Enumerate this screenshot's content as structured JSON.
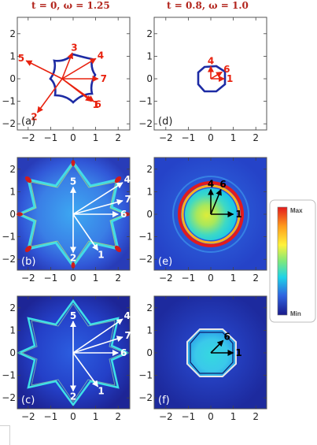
{
  "titles": {
    "left": "t = 0, ω = 1.25",
    "right": "t = 0.8, ω = 1.0"
  },
  "colorbar": {
    "max_label": "Max",
    "min_label": "Min",
    "stops": [
      "#e31a1c",
      "#ff9e1c",
      "#fff23a",
      "#7fe87a",
      "#1dd3e8",
      "#2f63e0",
      "#1a1a8a"
    ]
  },
  "axes": {
    "x_ticks": [
      "−2",
      "−1",
      "0",
      "1",
      "2"
    ],
    "y_ticks": [
      "2",
      "1",
      "0",
      "−1",
      "−2"
    ]
  },
  "chart_data": [
    {
      "panel": "(a)",
      "type": "diagram",
      "xlim": [
        -2.5,
        2.5
      ],
      "ylim": [
        -2.5,
        2.5
      ],
      "vectors": [
        {
          "label": "1",
          "x": 1.3,
          "y": -1.0
        },
        {
          "label": "2",
          "x": -1.1,
          "y": -1.5
        },
        {
          "label": "3",
          "x": 0.45,
          "y": 1.15
        },
        {
          "label": "4",
          "x": 1.5,
          "y": 0.9
        },
        {
          "label": "5",
          "x": -1.6,
          "y": 0.8
        },
        {
          "label": "6",
          "x": 1.4,
          "y": -1.0
        },
        {
          "label": "7",
          "x": 1.6,
          "y": 0.0
        }
      ]
    },
    {
      "panel": "(d)",
      "type": "diagram",
      "xlim": [
        -2.5,
        2.5
      ],
      "ylim": [
        -2.5,
        2.5
      ],
      "vectors": [
        {
          "label": "1",
          "x": 0.6,
          "y": 0.0
        },
        {
          "label": "4",
          "x": 0.0,
          "y": 0.55
        },
        {
          "label": "6",
          "x": 0.5,
          "y": 0.3
        }
      ]
    },
    {
      "panel": "(b)",
      "type": "heatmap",
      "xlim": [
        -2.5,
        2.5
      ],
      "ylim": [
        -2.5,
        2.5
      ],
      "vectors": [
        {
          "label": "1",
          "x": 1.1,
          "y": -1.6
        },
        {
          "label": "2",
          "x": 0.0,
          "y": -1.7
        },
        {
          "label": "4",
          "x": 2.2,
          "y": 1.4
        },
        {
          "label": "5",
          "x": 0.0,
          "y": 1.2
        },
        {
          "label": "6",
          "x": 2.0,
          "y": 0.0
        },
        {
          "label": "7",
          "x": 2.2,
          "y": 0.6
        }
      ]
    },
    {
      "panel": "(e)",
      "type": "heatmap",
      "xlim": [
        -2.5,
        2.5
      ],
      "ylim": [
        -2.5,
        2.5
      ],
      "vectors": [
        {
          "label": "1",
          "x": 1.0,
          "y": 0.0
        },
        {
          "label": "4",
          "x": 0.0,
          "y": 1.1
        },
        {
          "label": "6",
          "x": 0.45,
          "y": 1.1
        }
      ]
    },
    {
      "panel": "(c)",
      "type": "heatmap",
      "xlim": [
        -2.5,
        2.5
      ],
      "ylim": [
        -2.5,
        2.5
      ],
      "vectors": [
        {
          "label": "1",
          "x": 1.1,
          "y": -1.5
        },
        {
          "label": "2",
          "x": 0.0,
          "y": -1.7
        },
        {
          "label": "4",
          "x": 2.2,
          "y": 1.5
        },
        {
          "label": "5",
          "x": 0.0,
          "y": 1.4
        },
        {
          "label": "6",
          "x": 2.0,
          "y": 0.0
        },
        {
          "label": "7",
          "x": 2.2,
          "y": 0.7
        }
      ]
    },
    {
      "panel": "(f)",
      "type": "heatmap",
      "xlim": [
        -2.5,
        2.5
      ],
      "ylim": [
        -2.5,
        2.5
      ],
      "vectors": [
        {
          "label": "1",
          "x": 1.0,
          "y": 0.0
        },
        {
          "label": "6",
          "x": 0.55,
          "y": 0.55
        }
      ]
    }
  ]
}
